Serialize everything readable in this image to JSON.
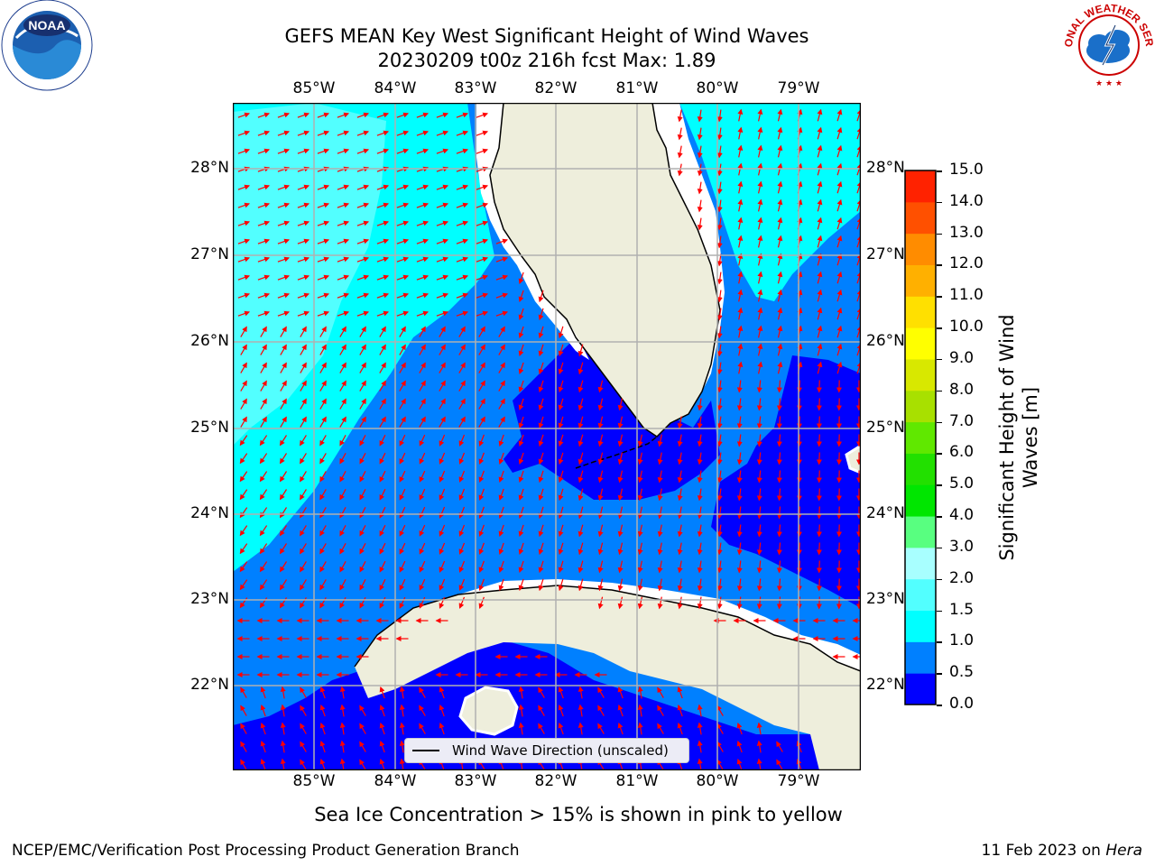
{
  "title_line1": "GEFS MEAN Key West Significant Height of Wind Waves",
  "title_line2": "20230209 t00z 216h fcst   Max: 1.89",
  "lon_labels": [
    "85°W",
    "84°W",
    "83°W",
    "82°W",
    "81°W",
    "80°W",
    "79°W"
  ],
  "lat_labels": [
    "28°N",
    "27°N",
    "26°N",
    "25°N",
    "24°N",
    "23°N",
    "22°N"
  ],
  "colorbar": {
    "label": "Significant Height of Wind Waves [m]",
    "ticks": [
      "15.0",
      "14.0",
      "13.0",
      "12.0",
      "11.0",
      "10.0",
      "9.0",
      "8.0",
      "7.0",
      "6.0",
      "5.0",
      "4.0",
      "3.0",
      "2.0",
      "1.5",
      "1.0",
      "0.5",
      "0.0"
    ],
    "colors": [
      "#0000ff",
      "#0080ff",
      "#00ffff",
      "#52ffff",
      "#a8ffff",
      "#58ff80",
      "#00e600",
      "#22e000",
      "#60e800",
      "#a8e000",
      "#d8e800",
      "#ffff00",
      "#ffe000",
      "#ffb000",
      "#ff8c00",
      "#ff5000",
      "#ff2200"
    ]
  },
  "legend_text": "Wind Wave Direction (unscaled)",
  "footer_note": "Sea Ice Concentration > 15% is shown in pink to yellow",
  "footer_left": "NCEP/EMC/Verification Post Processing Product Generation Branch",
  "footer_right_date": "11 Feb 2023 on",
  "footer_right_host": "Hera",
  "logos": {
    "left": "NOAA",
    "right": "NATIONAL WEATHER SERVICE"
  },
  "colors": {
    "arrow": "#ff0000",
    "land": "#eeeedc",
    "grid": "#b0b0b0"
  }
}
